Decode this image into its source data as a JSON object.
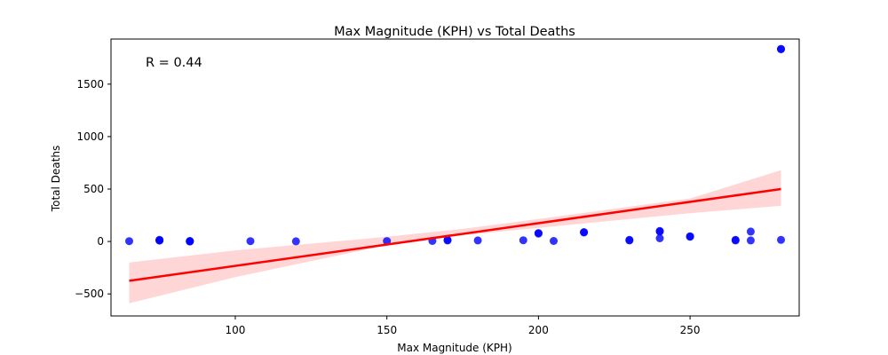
{
  "chart_data": {
    "type": "scatter",
    "title": "Max Magnitude (KPH) vs Total Deaths",
    "xlabel": "Max Magnitude (KPH)",
    "ylabel": "Total Deaths",
    "annotation": "R = 0.44",
    "xlim": [
      59,
      286
    ],
    "ylim": [
      -710,
      1930
    ],
    "xticks": [
      100,
      150,
      200,
      250
    ],
    "yticks": [
      -500,
      0,
      500,
      1000,
      1500
    ],
    "grid": false,
    "legend": "none",
    "colors": {
      "points": "#0000ff",
      "regression_line": "#ff0000",
      "confidence_band": "#ffd6d6"
    },
    "points": [
      {
        "x": 65,
        "y": 3
      },
      {
        "x": 75,
        "y": 12
      },
      {
        "x": 75,
        "y": 8
      },
      {
        "x": 75,
        "y": 15
      },
      {
        "x": 85,
        "y": 2
      },
      {
        "x": 85,
        "y": 5
      },
      {
        "x": 85,
        "y": 0
      },
      {
        "x": 105,
        "y": 3
      },
      {
        "x": 120,
        "y": 2
      },
      {
        "x": 150,
        "y": 4
      },
      {
        "x": 165,
        "y": 5
      },
      {
        "x": 170,
        "y": 10
      },
      {
        "x": 170,
        "y": 15
      },
      {
        "x": 180,
        "y": 10
      },
      {
        "x": 195,
        "y": 12
      },
      {
        "x": 200,
        "y": 75
      },
      {
        "x": 200,
        "y": 80
      },
      {
        "x": 205,
        "y": 5
      },
      {
        "x": 215,
        "y": 90
      },
      {
        "x": 215,
        "y": 85
      },
      {
        "x": 230,
        "y": 10
      },
      {
        "x": 230,
        "y": 15
      },
      {
        "x": 240,
        "y": 95
      },
      {
        "x": 240,
        "y": 30
      },
      {
        "x": 240,
        "y": 100
      },
      {
        "x": 250,
        "y": 45
      },
      {
        "x": 250,
        "y": 50
      },
      {
        "x": 265,
        "y": 10
      },
      {
        "x": 265,
        "y": 15
      },
      {
        "x": 270,
        "y": 95
      },
      {
        "x": 270,
        "y": 10
      },
      {
        "x": 280,
        "y": 15
      },
      {
        "x": 280,
        "y": 1833
      },
      {
        "x": 280,
        "y": 1836
      }
    ],
    "regression": {
      "x": [
        65,
        280
      ],
      "y": [
        -375,
        500
      ]
    },
    "confidence_band": {
      "x": [
        65,
        100,
        150,
        175,
        200,
        250,
        280
      ],
      "upper": [
        -200,
        -85,
        45,
        120,
        215,
        410,
        680
      ],
      "lower": [
        -590,
        -340,
        -35,
        60,
        130,
        270,
        340
      ]
    }
  }
}
